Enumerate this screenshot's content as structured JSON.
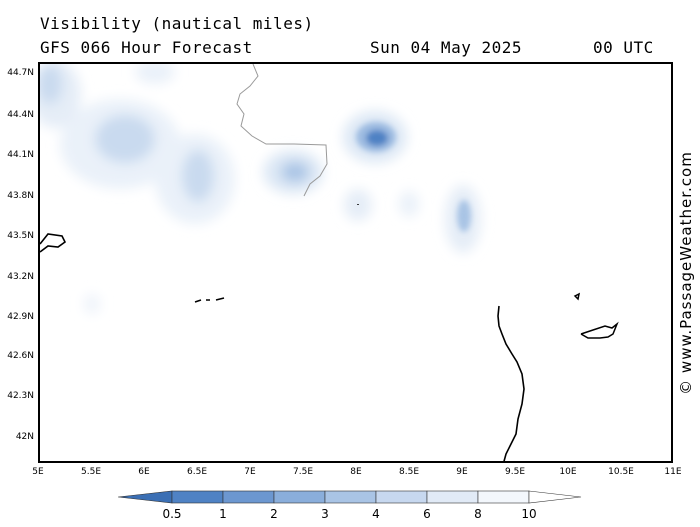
{
  "header": {
    "title": "Visibility (nautical miles)",
    "subtitle": "GFS 066 Hour Forecast",
    "date": "Sun 04 May 2025",
    "time": "00 UTC"
  },
  "credit": "© www.PassageWeather.com",
  "map": {
    "lat_labels": [
      "44.7N",
      "44.4N",
      "44.1N",
      "43.8N",
      "43.5N",
      "43.2N",
      "42.9N",
      "42.6N",
      "42.3N",
      "42N"
    ],
    "lon_labels": [
      "5E",
      "5.5E",
      "6E",
      "6.5E",
      "7E",
      "7.5E",
      "8E",
      "8.5E",
      "9E",
      "9.5E",
      "10E",
      "10.5E",
      "11E"
    ],
    "colors": {
      "land_line": "#000000",
      "border_line": "#9a9a9a",
      "background": "#ffffff"
    }
  },
  "legend": {
    "labels": [
      "0.5",
      "1",
      "2",
      "3",
      "4",
      "6",
      "8",
      "10"
    ],
    "colors": [
      "#3b6fb4",
      "#4f82c4",
      "#6c97d0",
      "#8aaedb",
      "#a9c4e5",
      "#c7d8ef",
      "#e1eaf6",
      "#f3f7fc",
      "#ffffff"
    ]
  }
}
